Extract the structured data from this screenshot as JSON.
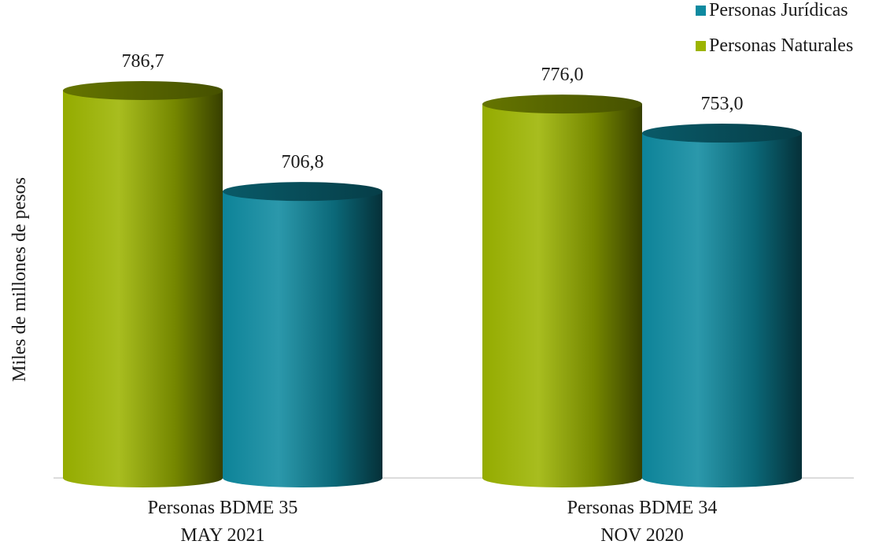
{
  "chart_data": {
    "type": "bar",
    "categories": [
      [
        "Personas BDME 35",
        "MAY 2021"
      ],
      [
        "Personas BDME 34",
        "NOV 2020"
      ]
    ],
    "series": [
      {
        "name": "Personas Naturales",
        "values": [
          786.7,
          776.0
        ],
        "labels": [
          "786,7",
          "776,0"
        ],
        "color": "#9cb400"
      },
      {
        "name": "Personas Jurídicas",
        "values": [
          706.8,
          753.0
        ],
        "labels": [
          "706,8",
          "753,0"
        ],
        "color": "#0e8aa0"
      }
    ],
    "legend_order": [
      "Personas Jurídicas",
      "Personas Naturales"
    ],
    "legend_position": "top-right",
    "ylabel": "Miles de millones de pesos",
    "ylim": [
      480,
      800
    ],
    "grid": false,
    "style": "3d-cylinder"
  }
}
